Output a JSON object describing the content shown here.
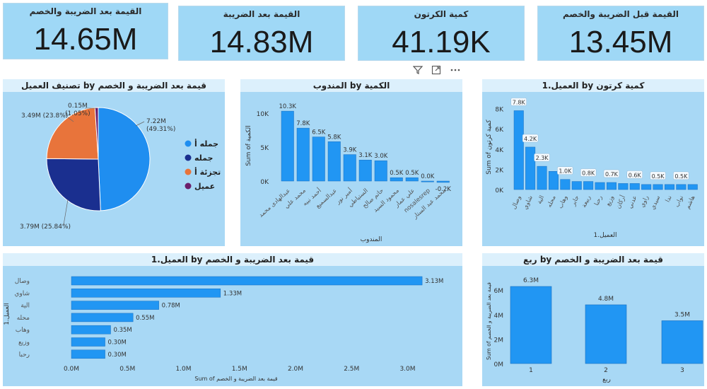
{
  "kpis": [
    {
      "title": "القيمة بعد الضريبة والخصم",
      "value": "14.65M"
    },
    {
      "title": "القيمة بعد الضريبة",
      "value": "14.83M"
    },
    {
      "title": "كمية الكرتون",
      "value": "41.19K"
    },
    {
      "title": "القيمة قبل الضريبة والخصم",
      "value": "13.45M"
    }
  ],
  "toolbar": {
    "filter_icon": "filter-icon",
    "focus_icon": "focus-mode-icon",
    "more_icon": "more-options-icon"
  },
  "pie": {
    "title": "تصنيف العميل by قيمة بعد الضريبة و الخصم",
    "chart_data": {
      "type": "pie",
      "slices": [
        {
          "name": "جمله أ",
          "value": 7.22,
          "label": "7.22M",
          "pct": "(49.31%)",
          "color": "#1f8ef0"
        },
        {
          "name": "جمله",
          "value": 3.79,
          "label": "3.79M (25.84%)",
          "color": "#1a2f8f"
        },
        {
          "name": "تجزئة أ",
          "value": 3.49,
          "label": "3.49M (23.8%)",
          "color": "#e8743b"
        },
        {
          "name": "عميل",
          "value": 0.15,
          "label": "0.15M",
          "pct": "(1.05%)",
          "color": "#6b1f6b"
        }
      ]
    }
  },
  "mid": {
    "title": "المندوب by الكمية",
    "chart_data": {
      "type": "bar",
      "categories": [
        "عبدالهادى محمد",
        "محمد علي",
        "أحمد نبيه",
        "عبدالسميع",
        "أمير نور",
        "الستياطي",
        "حاتم صالح",
        "محمود السيد",
        "علي عمار",
        "nosalesrep",
        "محمد عبد الستار"
      ],
      "values": [
        10.3,
        7.8,
        6.5,
        5.8,
        3.9,
        3.1,
        3.0,
        0.5,
        0.5,
        0.0,
        -0.2
      ],
      "labels": [
        "10.3K",
        "7.8K",
        "6.5K",
        "5.8K",
        "3.9K",
        "3.1K",
        "3.0K",
        "0.5K",
        "0.5K",
        "0.0K",
        "-0.2K"
      ],
      "yticks": [
        "10K",
        "5K",
        "0K"
      ],
      "ylabel": "Sum of الكمية",
      "xlabel": "المندوب",
      "ylim": [
        -1,
        12
      ]
    }
  },
  "right": {
    "title": "العميل.1 by كمية كرتون",
    "chart_data": {
      "type": "bar",
      "categories": [
        "وصال",
        "شاوي",
        "الية",
        "محله",
        "وهاب",
        "جابر",
        "ربيعة",
        "رحبا",
        "وزيع",
        "أركان",
        "عدني",
        "راوي",
        "سيدي",
        "ندا",
        "نواب",
        "هاشم"
      ],
      "values": [
        7.8,
        4.2,
        2.3,
        1.8,
        1.0,
        0.8,
        0.8,
        0.7,
        0.7,
        0.6,
        0.6,
        0.5,
        0.5,
        0.5,
        0.5,
        0.5
      ],
      "labels": [
        "7.8K",
        "4.2K",
        "2.3K",
        "",
        "1.0K",
        "",
        "0.8K",
        "",
        "0.7K",
        "",
        "0.6K",
        "",
        "0.5K",
        "",
        "0.5K",
        ""
      ],
      "yticks": [
        "8K",
        "6K",
        "4K",
        "2K",
        "0K"
      ],
      "ylabel": "Sum of كمية كرتون",
      "xlabel": "العميل.1",
      "ylim": [
        0,
        8
      ]
    }
  },
  "hbar": {
    "title": "العميل.1 by قيمة بعد الضريبة و الخصم",
    "chart_data": {
      "type": "bar",
      "orientation": "horizontal",
      "categories": [
        "وصال",
        "شاوي",
        "الية",
        "محله",
        "وهاب",
        "وزيع",
        "رحبا"
      ],
      "values": [
        3.13,
        1.33,
        0.78,
        0.55,
        0.35,
        0.3,
        0.3
      ],
      "labels": [
        "3.13M",
        "1.33M",
        "0.78M",
        "0.55M",
        "0.35M",
        "0.30M",
        "0.30M"
      ],
      "xticks": [
        "0.0M",
        "0.5M",
        "1.0M",
        "1.5M",
        "2.0M",
        "2.5M",
        "3.0M"
      ],
      "xlabel": "Sum of قيمة بعد الضريبة و الخصم",
      "ylabel": "العميل.1",
      "xlim": [
        0,
        3.3
      ]
    }
  },
  "quarter": {
    "title": "ربع by قيمة بعد الضريبة و الخصم",
    "chart_data": {
      "type": "bar",
      "categories": [
        "1",
        "2",
        "3"
      ],
      "values": [
        6.3,
        4.8,
        3.5
      ],
      "labels": [
        "6.3M",
        "4.8M",
        "3.5M"
      ],
      "yticks": [
        "6M",
        "4M",
        "2M",
        "0M"
      ],
      "ylabel": "Sum of قيمة بعد الضريبة و الخصم",
      "xlabel": "ربع",
      "ylim": [
        0,
        7
      ]
    }
  }
}
